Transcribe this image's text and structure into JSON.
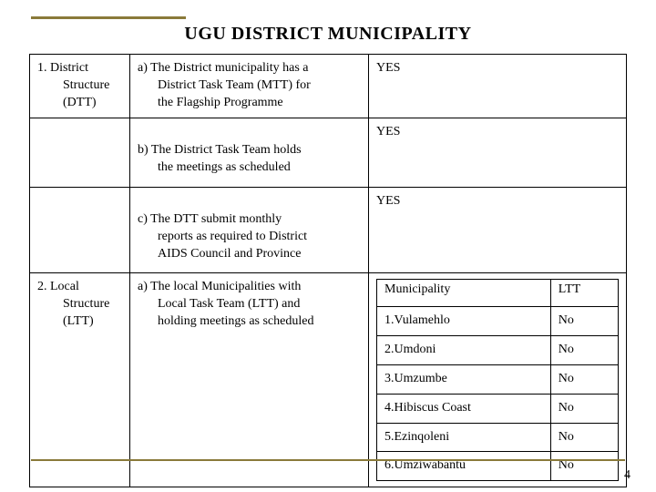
{
  "accent_color": "#8a7a3a",
  "text_color": "#000000",
  "background_color": "#ffffff",
  "font_family": "Georgia, 'Times New Roman', serif",
  "title": "UGU DISTRICT    MUNICIPALITY",
  "page_number": "4",
  "table": {
    "rows": [
      {
        "label_lines": [
          "1. District",
          "Structure",
          "(DTT)"
        ],
        "desc_lines": [
          "a) The District  municipality has a",
          "District   Task Team (MTT) for",
          "the Flagship Programme"
        ],
        "status": "YES"
      },
      {
        "label_lines": [],
        "desc_lines": [
          "b) The District Task Team holds",
          "the meetings as scheduled"
        ],
        "status": "YES"
      },
      {
        "label_lines": [],
        "desc_lines": [
          "c) The DTT submit monthly",
          "reports as required to District",
          "AIDS Council and Province"
        ],
        "status": "YES"
      },
      {
        "label_lines": [
          "2. Local",
          "Structure",
          "(LTT)"
        ],
        "desc_lines": [
          "a) The local  Municipalities with",
          "Local Task Team (LTT) and",
          "holding meetings as scheduled"
        ],
        "status_table": {
          "header": [
            "Municipality",
            "LTT"
          ],
          "rows": [
            [
              "1.Vulamehlo",
              "No"
            ],
            [
              "2.Umdoni",
              "No"
            ],
            [
              "3.Umzumbe",
              "No"
            ],
            [
              "4.Hibiscus Coast",
              "No"
            ],
            [
              "5.Ezinqoleni",
              "No"
            ],
            [
              "6.Umziwabantu",
              "No"
            ]
          ]
        }
      }
    ]
  }
}
